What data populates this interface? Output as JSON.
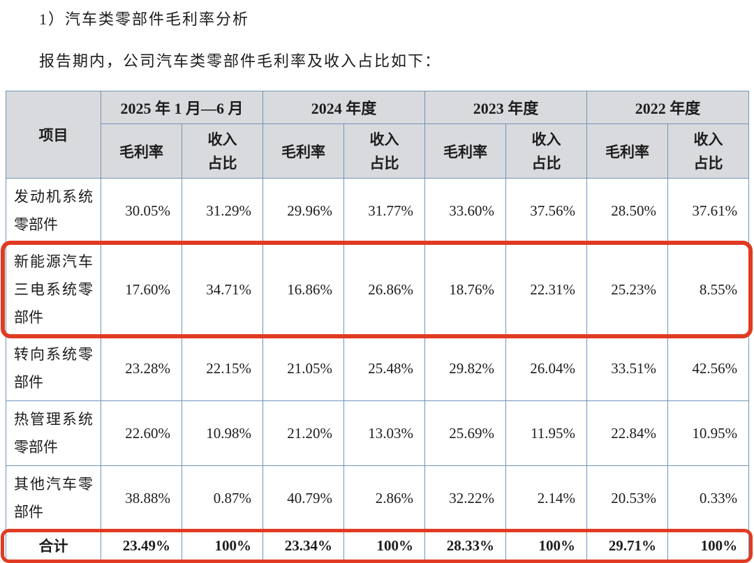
{
  "page": {
    "title": "1）汽车类零部件毛利率分析",
    "intro": "报告期内，公司汽车类零部件毛利率及收入占比如下："
  },
  "table": {
    "item_header": "项目",
    "period_headers": [
      "2025 年 1 月—6 月",
      "2024 年度",
      "2023 年度",
      "2022 年度"
    ],
    "sub_headers": {
      "margin": "毛利率",
      "share_line1": "收入",
      "share_line2": "占比"
    },
    "rows": [
      {
        "item": "发动机系统零部件",
        "highlighted": false,
        "values": [
          "30.05%",
          "31.29%",
          "29.96%",
          "31.77%",
          "33.60%",
          "37.56%",
          "28.50%",
          "37.61%"
        ]
      },
      {
        "item": "新能源汽车三电系统零部件",
        "highlighted": true,
        "values": [
          "17.60%",
          "34.71%",
          "16.86%",
          "26.86%",
          "18.76%",
          "22.31%",
          "25.23%",
          "8.55%"
        ]
      },
      {
        "item": "转向系统零部件",
        "highlighted": false,
        "values": [
          "23.28%",
          "22.15%",
          "21.05%",
          "25.48%",
          "29.82%",
          "26.04%",
          "33.51%",
          "42.56%"
        ]
      },
      {
        "item": "热管理系统零部件",
        "highlighted": false,
        "values": [
          "22.60%",
          "10.98%",
          "21.20%",
          "13.03%",
          "25.69%",
          "11.95%",
          "22.84%",
          "10.95%"
        ]
      },
      {
        "item": "其他汽车零部件",
        "highlighted": false,
        "values": [
          "38.88%",
          "0.87%",
          "40.79%",
          "2.86%",
          "32.22%",
          "2.14%",
          "20.53%",
          "0.33%"
        ]
      }
    ],
    "total_row": {
      "item": "合计",
      "highlighted": true,
      "values": [
        "23.49%",
        "100%",
        "23.34%",
        "100%",
        "28.33%",
        "100%",
        "29.71%",
        "100%"
      ]
    }
  },
  "colors": {
    "header_bg": "#d9dade",
    "table_border": "#6f94b8",
    "highlight_border": "#e03b22"
  }
}
